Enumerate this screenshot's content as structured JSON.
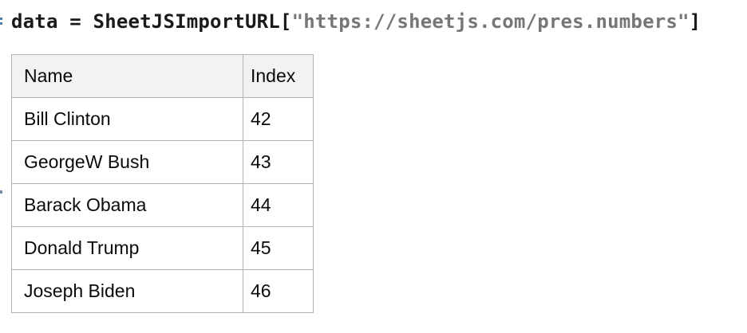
{
  "notebook": {
    "code_cell": {
      "prefix": "data = SheetJSImportURL[",
      "string_arg": "\"https://sheetjs.com/pres.numbers\"",
      "suffix": "]"
    },
    "table": {
      "headers": [
        "Name",
        "Index"
      ],
      "rows": [
        [
          "Bill Clinton",
          "42"
        ],
        [
          "GeorgeW Bush",
          "43"
        ],
        [
          "Barack Obama",
          "44"
        ],
        [
          "Donald Trump",
          "45"
        ],
        [
          "Joseph Biden",
          "46"
        ]
      ]
    },
    "colors": {
      "code_text": "#1a1a1a",
      "code_string": "#767676",
      "table_border": "#b3b3b3",
      "table_header_background": "#f2f2f2",
      "margin_label_blue": "#4f7dab"
    }
  }
}
